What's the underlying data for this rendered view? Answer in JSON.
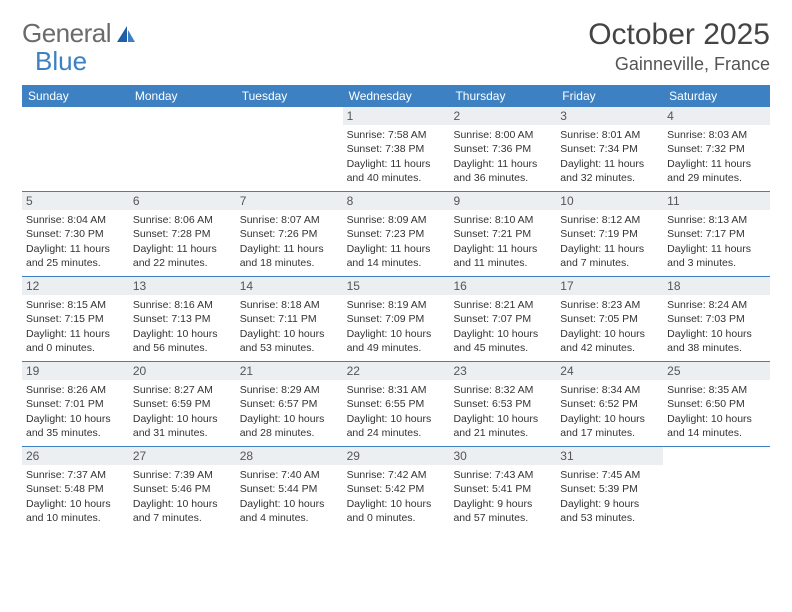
{
  "logo": {
    "text1": "General",
    "text2": "Blue"
  },
  "title": "October 2025",
  "location": "Gainneville, France",
  "colors": {
    "header_bg": "#3d81c2",
    "header_text": "#ffffff",
    "daynum_bg": "#eceff2",
    "row_border": "#3d81c2",
    "body_text": "#333333",
    "logo_gray": "#6b6b6b",
    "logo_blue": "#3d81c2"
  },
  "weekdays": [
    "Sunday",
    "Monday",
    "Tuesday",
    "Wednesday",
    "Thursday",
    "Friday",
    "Saturday"
  ],
  "weeks": [
    [
      {
        "n": "",
        "sunrise": "",
        "sunset": "",
        "daylight1": "",
        "daylight2": ""
      },
      {
        "n": "",
        "sunrise": "",
        "sunset": "",
        "daylight1": "",
        "daylight2": ""
      },
      {
        "n": "",
        "sunrise": "",
        "sunset": "",
        "daylight1": "",
        "daylight2": ""
      },
      {
        "n": "1",
        "sunrise": "Sunrise: 7:58 AM",
        "sunset": "Sunset: 7:38 PM",
        "daylight1": "Daylight: 11 hours",
        "daylight2": "and 40 minutes."
      },
      {
        "n": "2",
        "sunrise": "Sunrise: 8:00 AM",
        "sunset": "Sunset: 7:36 PM",
        "daylight1": "Daylight: 11 hours",
        "daylight2": "and 36 minutes."
      },
      {
        "n": "3",
        "sunrise": "Sunrise: 8:01 AM",
        "sunset": "Sunset: 7:34 PM",
        "daylight1": "Daylight: 11 hours",
        "daylight2": "and 32 minutes."
      },
      {
        "n": "4",
        "sunrise": "Sunrise: 8:03 AM",
        "sunset": "Sunset: 7:32 PM",
        "daylight1": "Daylight: 11 hours",
        "daylight2": "and 29 minutes."
      }
    ],
    [
      {
        "n": "5",
        "sunrise": "Sunrise: 8:04 AM",
        "sunset": "Sunset: 7:30 PM",
        "daylight1": "Daylight: 11 hours",
        "daylight2": "and 25 minutes."
      },
      {
        "n": "6",
        "sunrise": "Sunrise: 8:06 AM",
        "sunset": "Sunset: 7:28 PM",
        "daylight1": "Daylight: 11 hours",
        "daylight2": "and 22 minutes."
      },
      {
        "n": "7",
        "sunrise": "Sunrise: 8:07 AM",
        "sunset": "Sunset: 7:26 PM",
        "daylight1": "Daylight: 11 hours",
        "daylight2": "and 18 minutes."
      },
      {
        "n": "8",
        "sunrise": "Sunrise: 8:09 AM",
        "sunset": "Sunset: 7:23 PM",
        "daylight1": "Daylight: 11 hours",
        "daylight2": "and 14 minutes."
      },
      {
        "n": "9",
        "sunrise": "Sunrise: 8:10 AM",
        "sunset": "Sunset: 7:21 PM",
        "daylight1": "Daylight: 11 hours",
        "daylight2": "and 11 minutes."
      },
      {
        "n": "10",
        "sunrise": "Sunrise: 8:12 AM",
        "sunset": "Sunset: 7:19 PM",
        "daylight1": "Daylight: 11 hours",
        "daylight2": "and 7 minutes."
      },
      {
        "n": "11",
        "sunrise": "Sunrise: 8:13 AM",
        "sunset": "Sunset: 7:17 PM",
        "daylight1": "Daylight: 11 hours",
        "daylight2": "and 3 minutes."
      }
    ],
    [
      {
        "n": "12",
        "sunrise": "Sunrise: 8:15 AM",
        "sunset": "Sunset: 7:15 PM",
        "daylight1": "Daylight: 11 hours",
        "daylight2": "and 0 minutes."
      },
      {
        "n": "13",
        "sunrise": "Sunrise: 8:16 AM",
        "sunset": "Sunset: 7:13 PM",
        "daylight1": "Daylight: 10 hours",
        "daylight2": "and 56 minutes."
      },
      {
        "n": "14",
        "sunrise": "Sunrise: 8:18 AM",
        "sunset": "Sunset: 7:11 PM",
        "daylight1": "Daylight: 10 hours",
        "daylight2": "and 53 minutes."
      },
      {
        "n": "15",
        "sunrise": "Sunrise: 8:19 AM",
        "sunset": "Sunset: 7:09 PM",
        "daylight1": "Daylight: 10 hours",
        "daylight2": "and 49 minutes."
      },
      {
        "n": "16",
        "sunrise": "Sunrise: 8:21 AM",
        "sunset": "Sunset: 7:07 PM",
        "daylight1": "Daylight: 10 hours",
        "daylight2": "and 45 minutes."
      },
      {
        "n": "17",
        "sunrise": "Sunrise: 8:23 AM",
        "sunset": "Sunset: 7:05 PM",
        "daylight1": "Daylight: 10 hours",
        "daylight2": "and 42 minutes."
      },
      {
        "n": "18",
        "sunrise": "Sunrise: 8:24 AM",
        "sunset": "Sunset: 7:03 PM",
        "daylight1": "Daylight: 10 hours",
        "daylight2": "and 38 minutes."
      }
    ],
    [
      {
        "n": "19",
        "sunrise": "Sunrise: 8:26 AM",
        "sunset": "Sunset: 7:01 PM",
        "daylight1": "Daylight: 10 hours",
        "daylight2": "and 35 minutes."
      },
      {
        "n": "20",
        "sunrise": "Sunrise: 8:27 AM",
        "sunset": "Sunset: 6:59 PM",
        "daylight1": "Daylight: 10 hours",
        "daylight2": "and 31 minutes."
      },
      {
        "n": "21",
        "sunrise": "Sunrise: 8:29 AM",
        "sunset": "Sunset: 6:57 PM",
        "daylight1": "Daylight: 10 hours",
        "daylight2": "and 28 minutes."
      },
      {
        "n": "22",
        "sunrise": "Sunrise: 8:31 AM",
        "sunset": "Sunset: 6:55 PM",
        "daylight1": "Daylight: 10 hours",
        "daylight2": "and 24 minutes."
      },
      {
        "n": "23",
        "sunrise": "Sunrise: 8:32 AM",
        "sunset": "Sunset: 6:53 PM",
        "daylight1": "Daylight: 10 hours",
        "daylight2": "and 21 minutes."
      },
      {
        "n": "24",
        "sunrise": "Sunrise: 8:34 AM",
        "sunset": "Sunset: 6:52 PM",
        "daylight1": "Daylight: 10 hours",
        "daylight2": "and 17 minutes."
      },
      {
        "n": "25",
        "sunrise": "Sunrise: 8:35 AM",
        "sunset": "Sunset: 6:50 PM",
        "daylight1": "Daylight: 10 hours",
        "daylight2": "and 14 minutes."
      }
    ],
    [
      {
        "n": "26",
        "sunrise": "Sunrise: 7:37 AM",
        "sunset": "Sunset: 5:48 PM",
        "daylight1": "Daylight: 10 hours",
        "daylight2": "and 10 minutes."
      },
      {
        "n": "27",
        "sunrise": "Sunrise: 7:39 AM",
        "sunset": "Sunset: 5:46 PM",
        "daylight1": "Daylight: 10 hours",
        "daylight2": "and 7 minutes."
      },
      {
        "n": "28",
        "sunrise": "Sunrise: 7:40 AM",
        "sunset": "Sunset: 5:44 PM",
        "daylight1": "Daylight: 10 hours",
        "daylight2": "and 4 minutes."
      },
      {
        "n": "29",
        "sunrise": "Sunrise: 7:42 AM",
        "sunset": "Sunset: 5:42 PM",
        "daylight1": "Daylight: 10 hours",
        "daylight2": "and 0 minutes."
      },
      {
        "n": "30",
        "sunrise": "Sunrise: 7:43 AM",
        "sunset": "Sunset: 5:41 PM",
        "daylight1": "Daylight: 9 hours",
        "daylight2": "and 57 minutes."
      },
      {
        "n": "31",
        "sunrise": "Sunrise: 7:45 AM",
        "sunset": "Sunset: 5:39 PM",
        "daylight1": "Daylight: 9 hours",
        "daylight2": "and 53 minutes."
      },
      {
        "n": "",
        "sunrise": "",
        "sunset": "",
        "daylight1": "",
        "daylight2": ""
      }
    ]
  ]
}
